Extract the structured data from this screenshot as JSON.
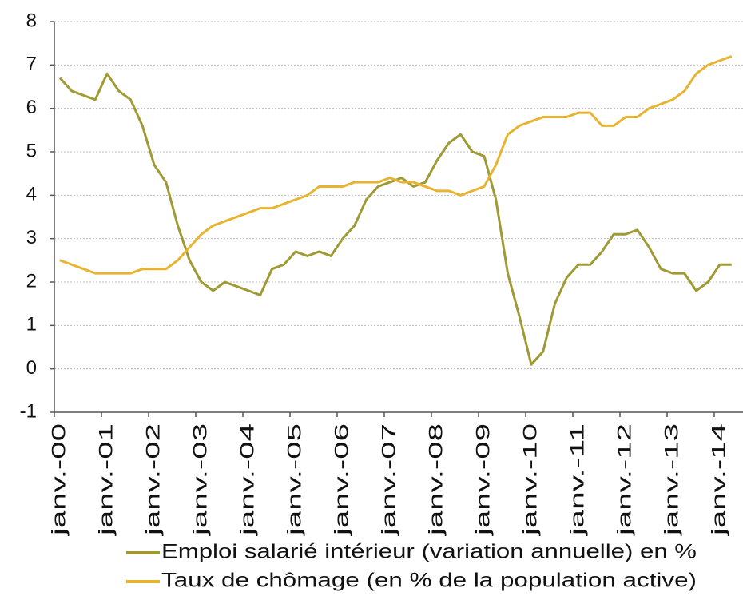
{
  "chart_data": {
    "type": "line",
    "categories": [
      "janv.-00",
      null,
      null,
      null,
      "janv.-01",
      null,
      null,
      null,
      "janv.-02",
      null,
      null,
      null,
      "janv.-03",
      null,
      null,
      null,
      "janv.-04",
      null,
      null,
      null,
      "janv.-05",
      null,
      null,
      null,
      "janv.-06",
      null,
      null,
      null,
      "janv.-07",
      null,
      null,
      null,
      "janv.-08",
      null,
      null,
      null,
      "janv.-09",
      null,
      null,
      null,
      "janv.-10",
      null,
      null,
      null,
      "janv.-11",
      null,
      null,
      null,
      "janv.-12",
      null,
      null,
      null,
      "janv.-13",
      null,
      null,
      null,
      "janv.-14",
      null
    ],
    "series": [
      {
        "name": "Emploi salarié intérieur (variation annuelle) en %",
        "color": "#a09a35",
        "values": [
          6.7,
          6.4,
          6.3,
          6.2,
          6.8,
          6.4,
          6.2,
          5.6,
          4.7,
          4.3,
          3.3,
          2.5,
          2.0,
          1.8,
          2.0,
          1.9,
          1.8,
          1.7,
          2.3,
          2.4,
          2.7,
          2.6,
          2.7,
          2.6,
          3.0,
          3.3,
          3.9,
          4.2,
          4.3,
          4.4,
          4.2,
          4.3,
          4.8,
          5.2,
          5.4,
          5.0,
          4.9,
          3.9,
          2.2,
          1.2,
          0.1,
          0.4,
          1.5,
          2.1,
          2.4,
          2.4,
          2.7,
          3.1,
          3.1,
          3.2,
          2.8,
          2.3,
          2.2,
          2.2,
          1.8,
          2.0,
          2.4,
          2.4
        ]
      },
      {
        "name": "Taux de chômage (en % de la population active)",
        "color": "#e8b430",
        "values": [
          2.5,
          2.4,
          2.3,
          2.2,
          2.2,
          2.2,
          2.2,
          2.3,
          2.3,
          2.3,
          2.5,
          2.8,
          3.1,
          3.3,
          3.4,
          3.5,
          3.6,
          3.7,
          3.7,
          3.8,
          3.9,
          4.0,
          4.2,
          4.2,
          4.2,
          4.3,
          4.3,
          4.3,
          4.4,
          4.3,
          4.3,
          4.2,
          4.1,
          4.1,
          4.0,
          4.1,
          4.2,
          4.7,
          5.4,
          5.6,
          5.7,
          5.8,
          5.8,
          5.8,
          5.9,
          5.9,
          5.6,
          5.6,
          5.8,
          5.8,
          6.0,
          6.1,
          6.2,
          6.4,
          6.8,
          7.0,
          7.1,
          7.2
        ]
      }
    ],
    "ylim": [
      -1,
      8
    ],
    "yticks": [
      -1,
      0,
      1,
      2,
      3,
      4,
      5,
      6,
      7,
      8
    ],
    "grid": true,
    "legend": "bottom"
  }
}
